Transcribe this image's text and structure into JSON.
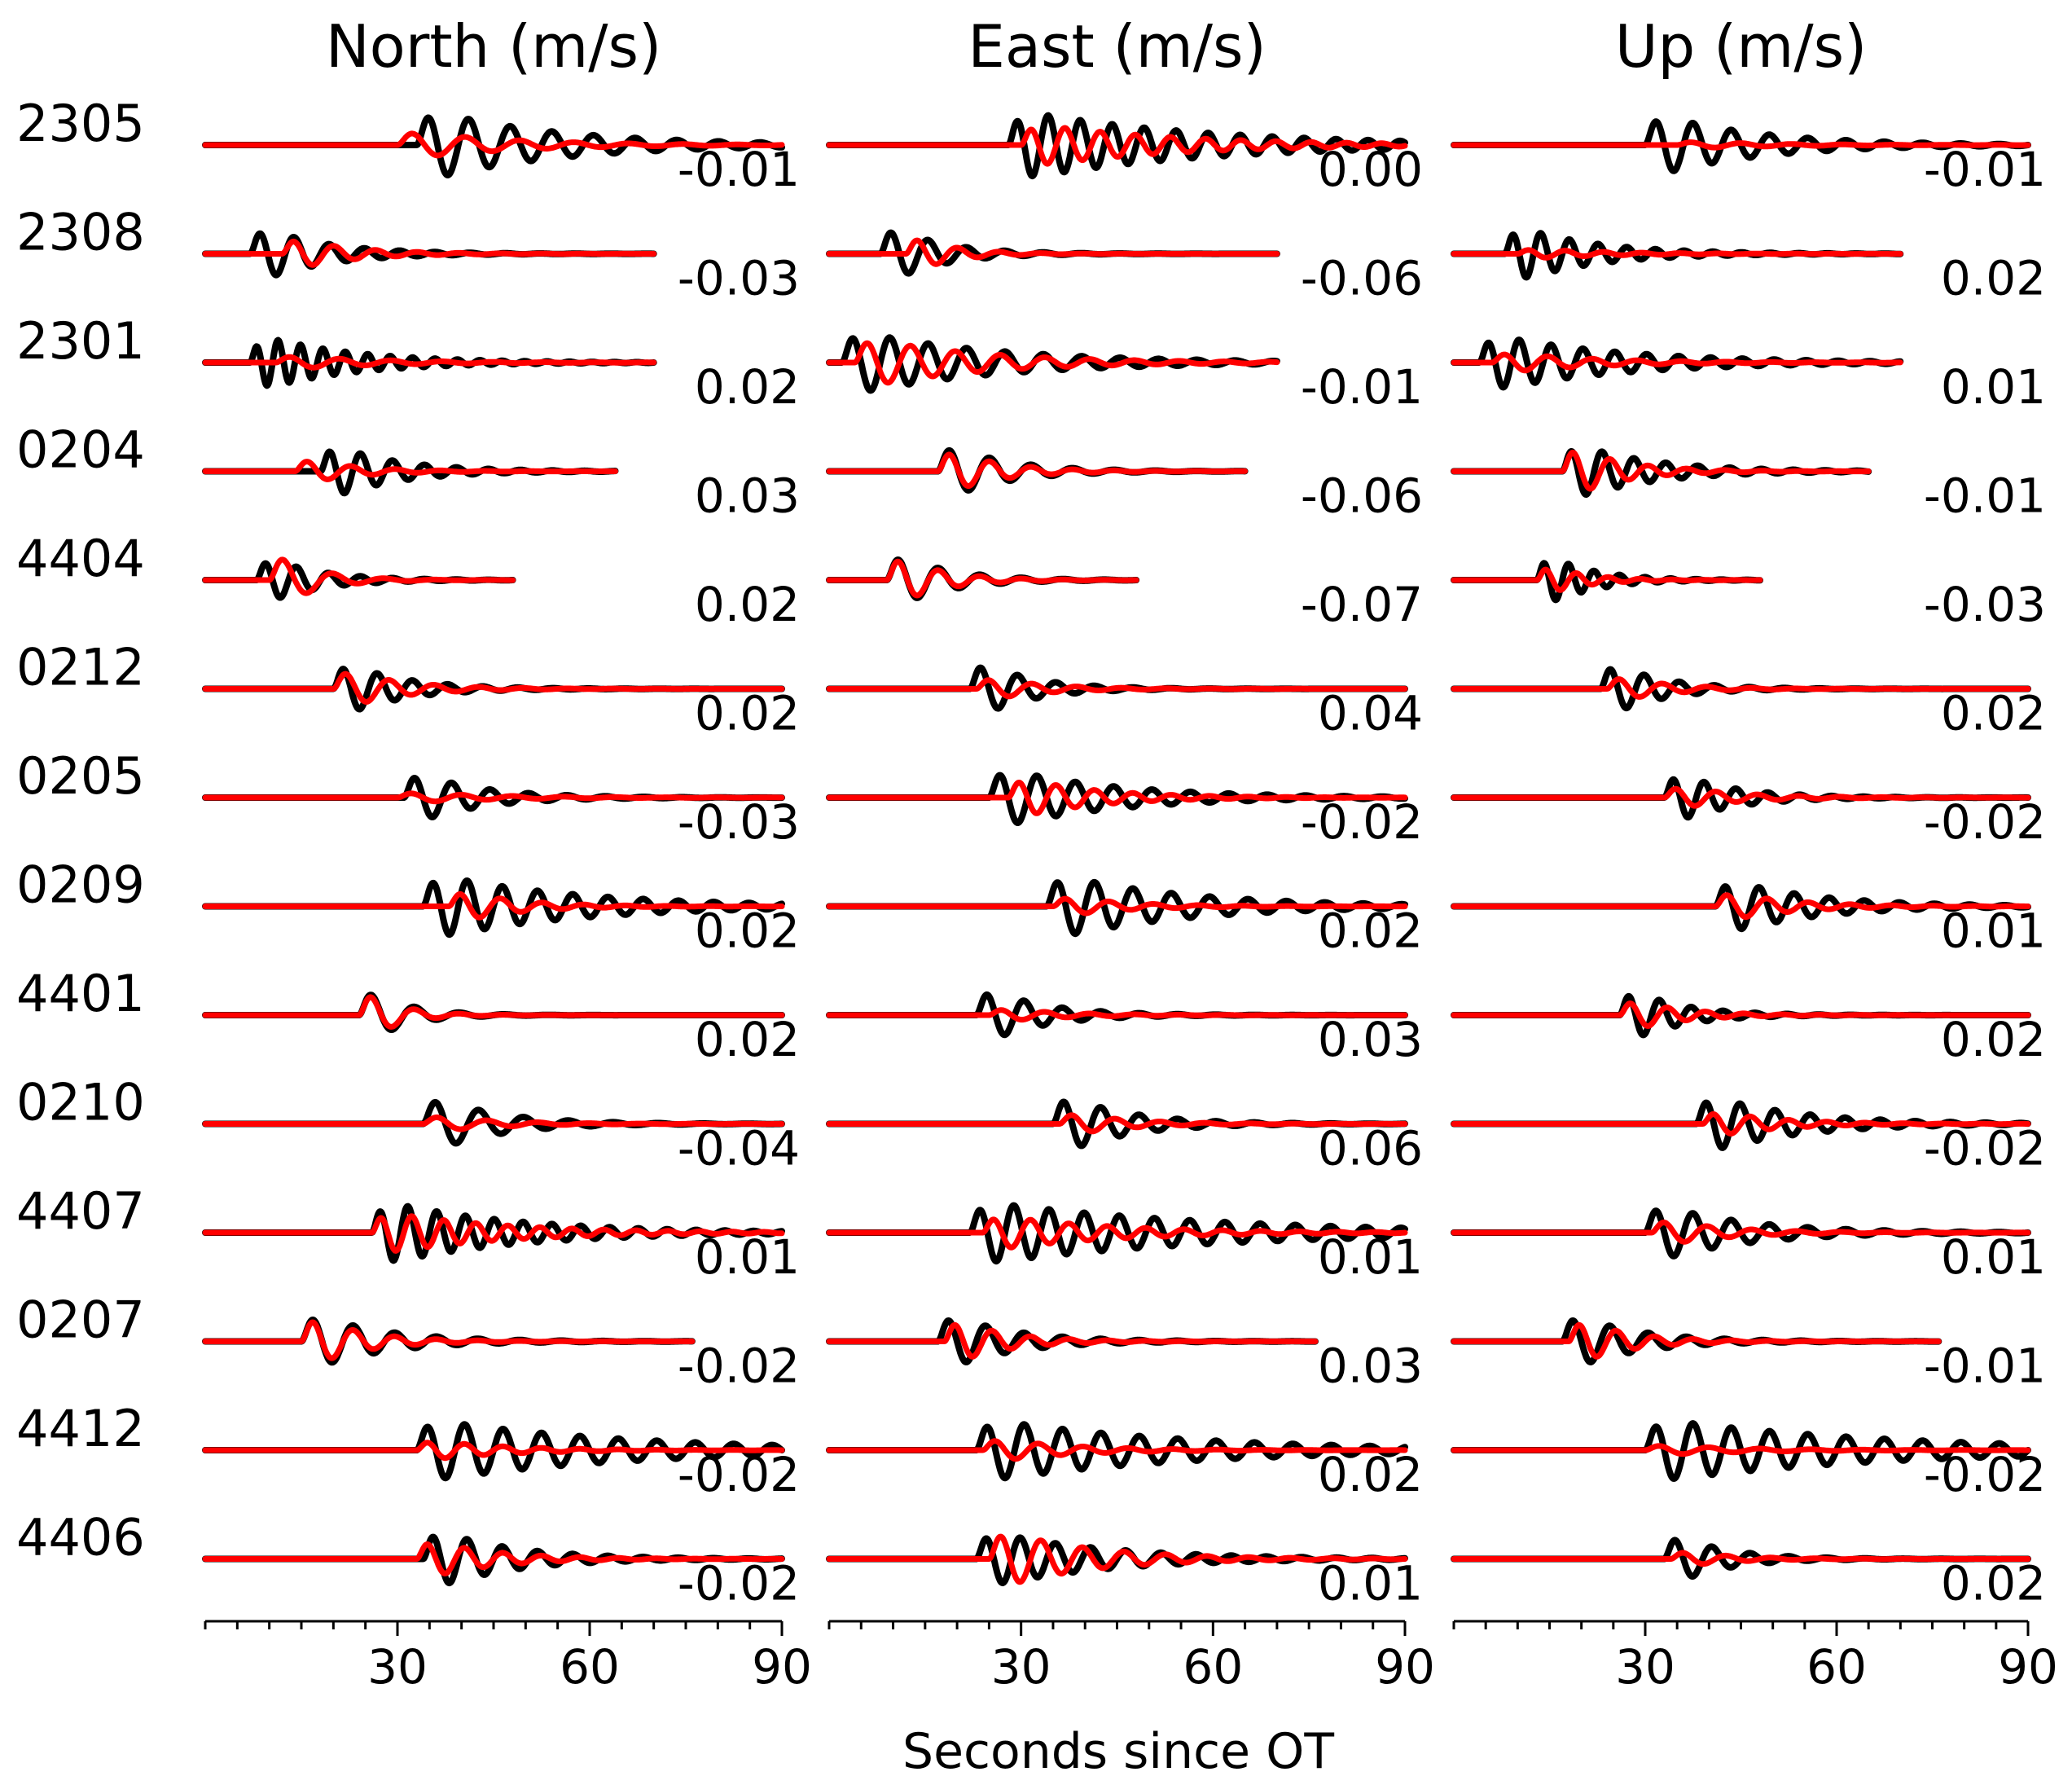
{
  "chart_data": {
    "type": "line",
    "title": "",
    "xlabel": "Seconds since OT",
    "xlim": [
      0,
      90
    ],
    "xticks": [
      30,
      60,
      90
    ],
    "colors": {
      "observed": "#000000",
      "synthetic": "#ff0000"
    },
    "stations": [
      "2305",
      "2308",
      "2301",
      "0204",
      "4404",
      "0212",
      "0205",
      "0209",
      "4401",
      "0210",
      "4407",
      "0207",
      "4412",
      "4406"
    ],
    "panels": [
      {
        "title": "North (m/s)",
        "values": [
          "-0.01",
          "-0.03",
          "0.02",
          "0.03",
          "0.02",
          "0.02",
          "-0.03",
          "0.02",
          "0.02",
          "-0.04",
          "0.01",
          "-0.02",
          "-0.02",
          "-0.02"
        ],
        "traces": [
          {
            "end": 90,
            "obsArrival": 33,
            "obsAmp": 1.0,
            "obsPeriod": 6.5,
            "obsDecay": 20,
            "synArrival": 30,
            "synAmp": 0.4,
            "synPeriod": 8.5,
            "synDecay": 16
          },
          {
            "end": 70,
            "obsArrival": 7,
            "obsAmp": 0.85,
            "obsPeriod": 5.5,
            "obsDecay": 10,
            "synArrival": 12,
            "synAmp": 0.5,
            "synPeriod": 6.5,
            "synDecay": 9
          },
          {
            "end": 70,
            "obsArrival": 7,
            "obsAmp": 0.8,
            "obsPeriod": 3.5,
            "obsDecay": 14,
            "synArrival": 11,
            "synAmp": 0.2,
            "synPeriod": 8,
            "synDecay": 14
          },
          {
            "end": 64,
            "obsArrival": 18,
            "obsAmp": 0.85,
            "obsPeriod": 5,
            "obsDecay": 10,
            "synArrival": 14,
            "synAmp": 0.4,
            "synPeriod": 7,
            "synDecay": 8
          },
          {
            "end": 48,
            "obsArrival": 8,
            "obsAmp": 0.75,
            "obsPeriod": 5,
            "obsDecay": 8,
            "synArrival": 10,
            "synAmp": 0.9,
            "synPeriod": 8,
            "synDecay": 6
          },
          {
            "end": 90,
            "obsArrival": 20,
            "obsAmp": 0.85,
            "obsPeriod": 5.5,
            "obsDecay": 9,
            "synArrival": 20,
            "synAmp": 0.6,
            "synPeriod": 7,
            "synDecay": 9
          },
          {
            "end": 90,
            "obsArrival": 31,
            "obsAmp": 0.8,
            "obsPeriod": 6,
            "obsDecay": 10,
            "synArrival": 30,
            "synAmp": 0.15,
            "synPeriod": 8,
            "synDecay": 14
          },
          {
            "end": 90,
            "obsArrival": 34,
            "obsAmp": 0.9,
            "obsPeriod": 5.5,
            "obsDecay": 22,
            "synArrival": 38,
            "synAmp": 0.5,
            "synPeriod": 6.5,
            "synDecay": 9
          },
          {
            "end": 90,
            "obsArrival": 24,
            "obsAmp": 0.9,
            "obsPeriod": 7,
            "obsDecay": 6,
            "synArrival": 24,
            "synAmp": 0.85,
            "synPeriod": 7,
            "synDecay": 5
          },
          {
            "end": 90,
            "obsArrival": 34,
            "obsAmp": 0.85,
            "obsPeriod": 7,
            "obsDecay": 10,
            "synArrival": 34,
            "synAmp": 0.25,
            "synPeriod": 8,
            "synDecay": 10
          },
          {
            "end": 90,
            "obsArrival": 26,
            "obsAmp": 0.9,
            "obsPeriod": 4.5,
            "obsDecay": 20,
            "synArrival": 26,
            "synAmp": 0.6,
            "synPeriod": 5,
            "synDecay": 18
          },
          {
            "end": 76,
            "obsArrival": 15,
            "obsAmp": 0.85,
            "obsPeriod": 6.5,
            "obsDecay": 11,
            "synArrival": 15,
            "synAmp": 0.8,
            "synPeriod": 6.5,
            "synDecay": 8
          },
          {
            "end": 90,
            "obsArrival": 33,
            "obsAmp": 0.85,
            "obsPeriod": 6,
            "obsDecay": 30,
            "synArrival": 33,
            "synAmp": 0.3,
            "synPeriod": 6,
            "synDecay": 12
          },
          {
            "end": 90,
            "obsArrival": 34,
            "obsAmp": 0.9,
            "obsPeriod": 5.5,
            "obsDecay": 12,
            "synArrival": 33,
            "synAmp": 0.6,
            "synPeriod": 6,
            "synDecay": 10
          }
        ]
      },
      {
        "title": "East (m/s)",
        "values": [
          "0.00",
          "-0.06",
          "-0.01",
          "-0.06",
          "-0.07",
          "0.04",
          "-0.02",
          "0.02",
          "0.03",
          "0.06",
          "0.01",
          "0.03",
          "0.02",
          "0.01"
        ],
        "traces": [
          {
            "end": 90,
            "obsArrival": 28,
            "obsAmp": 0.95,
            "obsPeriod": 5,
            "obsDecay": 28,
            "synArrival": 30,
            "synAmp": 0.6,
            "synPeriod": 5.5,
            "synDecay": 22
          },
          {
            "end": 70,
            "obsArrival": 8,
            "obsAmp": 0.9,
            "obsPeriod": 6,
            "obsDecay": 8,
            "synArrival": 12,
            "synAmp": 0.6,
            "synPeriod": 6.5,
            "synDecay": 6
          },
          {
            "end": 70,
            "obsArrival": 2,
            "obsAmp": 0.9,
            "obsPeriod": 6,
            "obsDecay": 22,
            "synArrival": 4,
            "synAmp": 0.7,
            "synPeriod": 7,
            "synDecay": 18
          },
          {
            "end": 65,
            "obsArrival": 17,
            "obsAmp": 0.85,
            "obsPeriod": 6.5,
            "obsDecay": 9,
            "synArrival": 17,
            "synAmp": 0.7,
            "synPeriod": 6.5,
            "synDecay": 8
          },
          {
            "end": 48,
            "obsArrival": 9,
            "obsAmp": 0.85,
            "obsPeriod": 6.5,
            "obsDecay": 8,
            "synArrival": 9,
            "synAmp": 0.8,
            "synPeriod": 6.5,
            "synDecay": 7
          },
          {
            "end": 90,
            "obsArrival": 22,
            "obsAmp": 0.9,
            "obsPeriod": 6,
            "obsDecay": 8,
            "synArrival": 23,
            "synAmp": 0.35,
            "synPeriod": 7,
            "synDecay": 9
          },
          {
            "end": 90,
            "obsArrival": 25,
            "obsAmp": 0.85,
            "obsPeriod": 6,
            "obsDecay": 18,
            "synArrival": 28,
            "synAmp": 0.6,
            "synPeriod": 6,
            "synDecay": 12
          },
          {
            "end": 90,
            "obsArrival": 34,
            "obsAmp": 0.9,
            "obsPeriod": 6,
            "obsDecay": 20,
            "synArrival": 35,
            "synAmp": 0.3,
            "synPeriod": 7,
            "synDecay": 10
          },
          {
            "end": 90,
            "obsArrival": 23,
            "obsAmp": 0.85,
            "obsPeriod": 6,
            "obsDecay": 9,
            "synArrival": 25,
            "synAmp": 0.2,
            "synPeriod": 7,
            "synDecay": 10
          },
          {
            "end": 90,
            "obsArrival": 35,
            "obsAmp": 0.9,
            "obsPeriod": 6,
            "obsDecay": 10,
            "synArrival": 36,
            "synAmp": 0.35,
            "synPeriod": 7,
            "synDecay": 9
          },
          {
            "end": 90,
            "obsArrival": 22,
            "obsAmp": 0.85,
            "obsPeriod": 5.5,
            "obsDecay": 35,
            "synArrival": 24,
            "synAmp": 0.5,
            "synPeriod": 6,
            "synDecay": 18
          },
          {
            "end": 76,
            "obsArrival": 17,
            "obsAmp": 0.85,
            "obsPeriod": 6,
            "obsDecay": 10,
            "synArrival": 18,
            "synAmp": 0.7,
            "synPeriod": 6,
            "synDecay": 8
          },
          {
            "end": 90,
            "obsArrival": 23,
            "obsAmp": 0.85,
            "obsPeriod": 6,
            "obsDecay": 30,
            "synArrival": 24,
            "synAmp": 0.35,
            "synPeriod": 7,
            "synDecay": 12
          },
          {
            "end": 90,
            "obsArrival": 23,
            "obsAmp": 0.8,
            "obsPeriod": 5.5,
            "obsDecay": 18,
            "synArrival": 25,
            "synAmp": 0.85,
            "synPeriod": 6.5,
            "synDecay": 14
          }
        ]
      },
      {
        "title": "Up (m/s)",
        "values": [
          "-0.01",
          "0.02",
          "0.01",
          "-0.01",
          "-0.03",
          "0.02",
          "-0.02",
          "0.01",
          "0.02",
          "-0.02",
          "0.01",
          "-0.01",
          "-0.02",
          "0.02"
        ],
        "traces": [
          {
            "end": 90,
            "obsArrival": 30,
            "obsAmp": 0.9,
            "obsPeriod": 6,
            "obsDecay": 16,
            "synArrival": 35,
            "synAmp": 0.1,
            "synPeriod": 8,
            "synDecay": 14
          },
          {
            "end": 70,
            "obsArrival": 8,
            "obsAmp": 0.85,
            "obsPeriod": 4.5,
            "obsDecay": 12,
            "synArrival": 10,
            "synAmp": 0.15,
            "synPeriod": 6,
            "synDecay": 12
          },
          {
            "end": 70,
            "obsArrival": 4,
            "obsAmp": 0.8,
            "obsPeriod": 5,
            "obsDecay": 20,
            "synArrival": 6,
            "synAmp": 0.3,
            "synPeriod": 7,
            "synDecay": 14
          },
          {
            "end": 65,
            "obsArrival": 17,
            "obsAmp": 0.85,
            "obsPeriod": 5,
            "obsDecay": 12,
            "synArrival": 17,
            "synAmp": 0.8,
            "synPeriod": 6,
            "synDecay": 8
          },
          {
            "end": 48,
            "obsArrival": 13,
            "obsAmp": 0.85,
            "obsPeriod": 4,
            "obsDecay": 7,
            "synArrival": 13,
            "synAmp": 0.5,
            "synPeriod": 5,
            "synDecay": 6
          },
          {
            "end": 90,
            "obsArrival": 23,
            "obsAmp": 0.85,
            "obsPeriod": 5.5,
            "obsDecay": 8,
            "synArrival": 24,
            "synAmp": 0.4,
            "synPeriod": 7,
            "synDecay": 8
          },
          {
            "end": 90,
            "obsArrival": 33,
            "obsAmp": 0.8,
            "obsPeriod": 5,
            "obsDecay": 9,
            "synArrival": 33,
            "synAmp": 0.35,
            "synPeriod": 6.5,
            "synDecay": 10
          },
          {
            "end": 90,
            "obsArrival": 41,
            "obsAmp": 0.8,
            "obsPeriod": 5.5,
            "obsDecay": 14,
            "synArrival": 41,
            "synAmp": 0.45,
            "synPeriod": 6.5,
            "synDecay": 10
          },
          {
            "end": 90,
            "obsArrival": 26,
            "obsAmp": 0.85,
            "obsPeriod": 5,
            "obsDecay": 8,
            "synArrival": 26,
            "synAmp": 0.5,
            "synPeriod": 6,
            "synDecay": 8
          },
          {
            "end": 90,
            "obsArrival": 38,
            "obsAmp": 0.85,
            "obsPeriod": 5.5,
            "obsDecay": 14,
            "synArrival": 39,
            "synAmp": 0.4,
            "synPeriod": 6,
            "synDecay": 10
          },
          {
            "end": 90,
            "obsArrival": 30,
            "obsAmp": 0.85,
            "obsPeriod": 6,
            "obsDecay": 14,
            "synArrival": 31,
            "synAmp": 0.4,
            "synPeriod": 7,
            "synDecay": 10
          },
          {
            "end": 76,
            "obsArrival": 17,
            "obsAmp": 0.85,
            "obsPeriod": 6,
            "obsDecay": 10,
            "synArrival": 18,
            "synAmp": 0.7,
            "synPeriod": 6,
            "synDecay": 8
          },
          {
            "end": 90,
            "obsArrival": 30,
            "obsAmp": 0.85,
            "obsPeriod": 6,
            "obsDecay": 35,
            "synArrival": 30,
            "synAmp": 0.15,
            "synPeriod": 8,
            "synDecay": 14
          },
          {
            "end": 90,
            "obsArrival": 33,
            "obsAmp": 0.8,
            "obsPeriod": 6,
            "obsDecay": 8,
            "synArrival": 34,
            "synAmp": 0.25,
            "synPeriod": 7,
            "synDecay": 8
          }
        ]
      }
    ]
  }
}
